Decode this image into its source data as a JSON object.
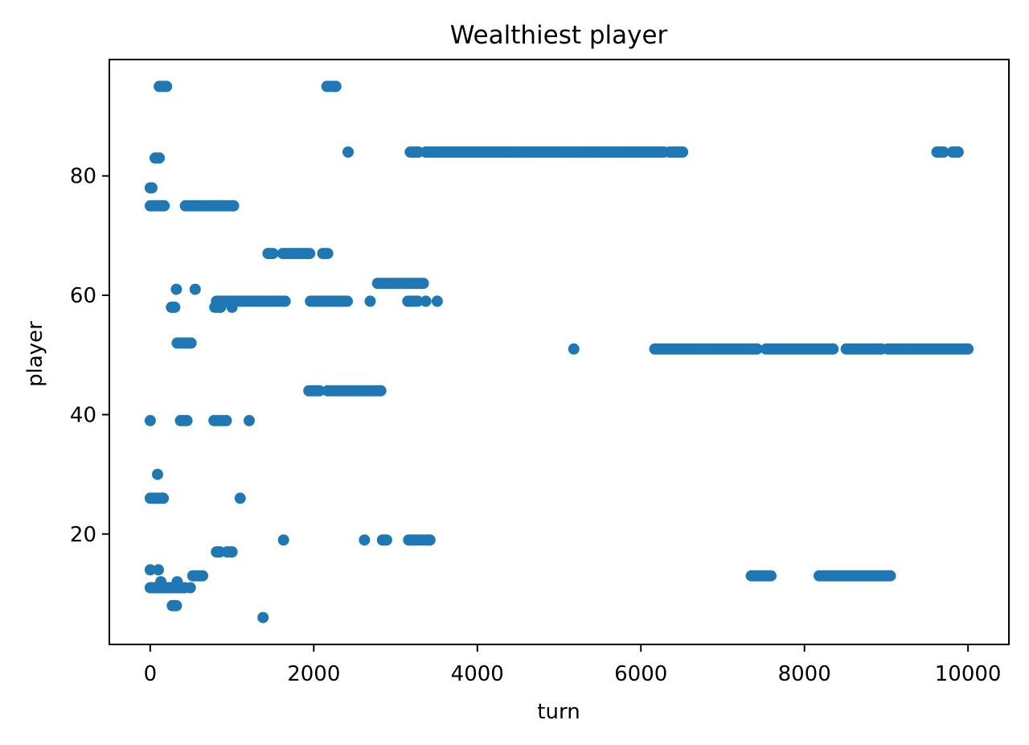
{
  "chart_data": {
    "type": "scatter",
    "title": "Wealthiest player",
    "xlabel": "turn",
    "ylabel": "player",
    "xlim": [
      -500,
      10500
    ],
    "ylim": [
      1.5,
      99.5
    ],
    "xticks": [
      0,
      2000,
      4000,
      6000,
      8000,
      10000
    ],
    "xtick_labels": [
      "0",
      "2000",
      "4000",
      "6000",
      "8000",
      "10000"
    ],
    "yticks": [
      20,
      40,
      60,
      80
    ],
    "ytick_labels": [
      "20",
      "40",
      "60",
      "80"
    ],
    "grid": false,
    "marker_color": "#1f77b4",
    "segments": [
      {
        "y": 95,
        "x": [
          110,
          200
        ],
        "step": 30
      },
      {
        "y": 95,
        "x": [
          2160,
          2270
        ],
        "step": 30
      },
      {
        "y": 84,
        "x": 2420
      },
      {
        "y": 84,
        "x": [
          3180,
          3280
        ],
        "step": 30
      },
      {
        "y": 84,
        "x": [
          3370,
          6280
        ],
        "step": 30
      },
      {
        "y": 84,
        "x": [
          6350,
          6510
        ],
        "step": 30
      },
      {
        "y": 84,
        "x": [
          9620,
          9700
        ],
        "step": 30
      },
      {
        "y": 84,
        "x": [
          9810,
          9880
        ],
        "step": 30
      },
      {
        "y": 83,
        "x": [
          60,
          110
        ],
        "step": 25
      },
      {
        "y": 78,
        "x": [
          0,
          20
        ],
        "step": 20
      },
      {
        "y": 75,
        "x": [
          0,
          170
        ],
        "step": 30
      },
      {
        "y": 75,
        "x": [
          430,
          1020
        ],
        "step": 30
      },
      {
        "y": 67,
        "x": [
          1440,
          1500
        ],
        "step": 30
      },
      {
        "y": 67,
        "x": [
          1620,
          1950
        ],
        "step": 30
      },
      {
        "y": 67,
        "x": [
          2110,
          2170
        ],
        "step": 30
      },
      {
        "y": 62,
        "x": [
          2780,
          3340
        ],
        "step": 30
      },
      {
        "y": 61,
        "x": 320
      },
      {
        "y": 61,
        "x": 550
      },
      {
        "y": 59,
        "x": [
          810,
          1650
        ],
        "step": 30
      },
      {
        "y": 59,
        "x": [
          1960,
          2410
        ],
        "step": 30
      },
      {
        "y": 59,
        "x": 2690
      },
      {
        "y": 59,
        "x": [
          3150,
          3270
        ],
        "step": 30
      },
      {
        "y": 59,
        "x": 3370
      },
      {
        "y": 59,
        "x": 3510
      },
      {
        "y": 58,
        "x": [
          260,
          300
        ],
        "step": 20
      },
      {
        "y": 58,
        "x": [
          790,
          860
        ],
        "step": 30
      },
      {
        "y": 58,
        "x": 1000
      },
      {
        "y": 52,
        "x": [
          330,
          500
        ],
        "step": 30
      },
      {
        "y": 51,
        "x": 5180
      },
      {
        "y": 51,
        "x": [
          6170,
          7420
        ],
        "step": 30
      },
      {
        "y": 51,
        "x": [
          7530,
          8350
        ],
        "step": 30
      },
      {
        "y": 51,
        "x": [
          8510,
          8940
        ],
        "step": 30
      },
      {
        "y": 51,
        "x": [
          9020,
          10000
        ],
        "step": 30
      },
      {
        "y": 44,
        "x": [
          1940,
          2070
        ],
        "step": 30
      },
      {
        "y": 44,
        "x": [
          2170,
          2820
        ],
        "step": 30
      },
      {
        "y": 39,
        "x": 0
      },
      {
        "y": 39,
        "x": [
          370,
          450
        ],
        "step": 30
      },
      {
        "y": 39,
        "x": [
          780,
          930
        ],
        "step": 30
      },
      {
        "y": 39,
        "x": 1210
      },
      {
        "y": 30,
        "x": 90
      },
      {
        "y": 26,
        "x": [
          0,
          160
        ],
        "step": 30
      },
      {
        "y": 26,
        "x": 1100
      },
      {
        "y": 19,
        "x": 1630
      },
      {
        "y": 19,
        "x": 2620
      },
      {
        "y": 19,
        "x": [
          2840,
          2890
        ],
        "step": 30
      },
      {
        "y": 19,
        "x": [
          3160,
          3420
        ],
        "step": 30
      },
      {
        "y": 17,
        "x": [
          810,
          850
        ],
        "step": 30
      },
      {
        "y": 17,
        "x": [
          940,
          1000
        ],
        "step": 30
      },
      {
        "y": 14,
        "x": 0
      },
      {
        "y": 14,
        "x": 100
      },
      {
        "y": 13,
        "x": [
          520,
          640
        ],
        "step": 30
      },
      {
        "y": 13,
        "x": [
          7350,
          7590
        ],
        "step": 30
      },
      {
        "y": 13,
        "x": [
          8180,
          9050
        ],
        "step": 30
      },
      {
        "y": 12,
        "x": 130
      },
      {
        "y": 12,
        "x": 330
      },
      {
        "y": 11,
        "x": [
          0,
          420
        ],
        "step": 30
      },
      {
        "y": 11,
        "x": 490
      },
      {
        "y": 8,
        "x": [
          270,
          320
        ],
        "step": 25
      },
      {
        "y": 6,
        "x": 1380
      }
    ]
  }
}
